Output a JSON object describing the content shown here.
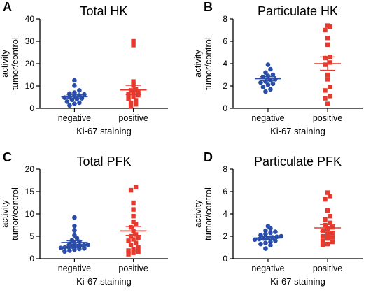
{
  "colors": {
    "negative": "#2a4da8",
    "positive": "#e63a2e",
    "axis": "#000000"
  },
  "chart_data": [
    {
      "type": "scatter",
      "panel": "A",
      "title": "Total HK",
      "ylabel_lines": [
        "activity",
        "tumor/control"
      ],
      "xlabel": "Ki-67 staining",
      "categories": [
        "negative",
        "positive"
      ],
      "ylim": [
        0,
        40
      ],
      "yticks": [
        0,
        10,
        20,
        30,
        40
      ],
      "series": [
        {
          "category": "negative",
          "marker": "circle",
          "values": [
            12.5,
            10.2,
            8.0,
            7.0,
            6.6,
            6.2,
            5.8,
            5.5,
            5.0,
            4.8,
            4.5,
            4.2,
            3.8,
            3.0,
            2.5,
            2.0,
            1.3
          ],
          "mean": 5.2,
          "sem": 0.8
        },
        {
          "category": "positive",
          "marker": "square",
          "values": [
            30.0,
            28.3,
            12.0,
            10.2,
            8.5,
            8.0,
            7.6,
            7.0,
            6.4,
            5.9,
            5.3,
            4.4,
            3.6,
            2.5,
            1.8,
            0.8
          ],
          "mean": 8.2,
          "sem": 2.1
        }
      ]
    },
    {
      "type": "scatter",
      "panel": "B",
      "title": "Particulate HK",
      "ylabel_lines": [
        "activity",
        "tumor/control"
      ],
      "xlabel": "Ki-67 staining",
      "categories": [
        "negative",
        "positive"
      ],
      "ylim": [
        0,
        8
      ],
      "yticks": [
        0,
        2,
        4,
        6,
        8
      ],
      "series": [
        {
          "category": "negative",
          "marker": "circle",
          "values": [
            3.9,
            3.5,
            3.2,
            3.0,
            2.9,
            2.8,
            2.6,
            2.5,
            2.4,
            2.3,
            2.2,
            2.1,
            1.9,
            1.7,
            1.5
          ],
          "mean": 2.65,
          "sem": 0.18
        },
        {
          "category": "positive",
          "marker": "square",
          "values": [
            7.4,
            7.3,
            7.0,
            6.3,
            5.7,
            4.6,
            4.5,
            4.1,
            3.9,
            3.0,
            2.6,
            1.9,
            1.6,
            1.1,
            0.9,
            0.4
          ],
          "mean": 4.0,
          "sem": 0.6
        }
      ]
    },
    {
      "type": "scatter",
      "panel": "C",
      "title": "Total PFK",
      "ylabel_lines": [
        "activity",
        "tumor/control"
      ],
      "xlabel": "Ki-67 staining",
      "categories": [
        "negative",
        "positive"
      ],
      "ylim": [
        0,
        20
      ],
      "yticks": [
        0,
        5,
        10,
        15,
        20
      ],
      "series": [
        {
          "category": "negative",
          "marker": "circle",
          "values": [
            9.2,
            7.3,
            6.3,
            5.2,
            4.6,
            4.1,
            3.8,
            3.5,
            3.3,
            3.1,
            3.0,
            2.9,
            2.8,
            2.7,
            2.6,
            2.5,
            2.4,
            2.3,
            2.2,
            2.0,
            1.8,
            1.6
          ],
          "mean": 3.6,
          "sem": 0.4
        },
        {
          "category": "positive",
          "marker": "square",
          "values": [
            16.0,
            15.3,
            12.5,
            11.0,
            9.5,
            8.2,
            7.7,
            7.0,
            6.2,
            5.4,
            5.0,
            4.7,
            4.3,
            4.0,
            3.5,
            3.0,
            2.5,
            2.1,
            1.8,
            1.5,
            1.3,
            1.0
          ],
          "mean": 6.2,
          "sem": 1.0
        }
      ]
    },
    {
      "type": "scatter",
      "panel": "D",
      "title": "Particulate PFK",
      "ylabel_lines": [
        "activity",
        "tumor/control"
      ],
      "xlabel": "Ki-67 staining",
      "categories": [
        "negative",
        "positive"
      ],
      "ylim": [
        0,
        8
      ],
      "yticks": [
        0,
        2,
        4,
        6,
        8
      ],
      "series": [
        {
          "category": "negative",
          "marker": "circle",
          "values": [
            2.9,
            2.7,
            2.5,
            2.4,
            2.3,
            2.2,
            2.1,
            2.0,
            1.95,
            1.9,
            1.85,
            1.8,
            1.75,
            1.7,
            1.6,
            1.5,
            1.4,
            1.3,
            1.2,
            0.9
          ],
          "mean": 1.85,
          "sem": 0.12
        },
        {
          "category": "positive",
          "marker": "square",
          "values": [
            5.9,
            5.6,
            5.3,
            4.3,
            3.8,
            3.5,
            3.2,
            3.0,
            2.8,
            2.7,
            2.5,
            2.3,
            2.2,
            2.0,
            1.9,
            1.8,
            1.6,
            1.5,
            1.3,
            1.2
          ],
          "mean": 2.75,
          "sem": 0.3
        }
      ]
    }
  ]
}
